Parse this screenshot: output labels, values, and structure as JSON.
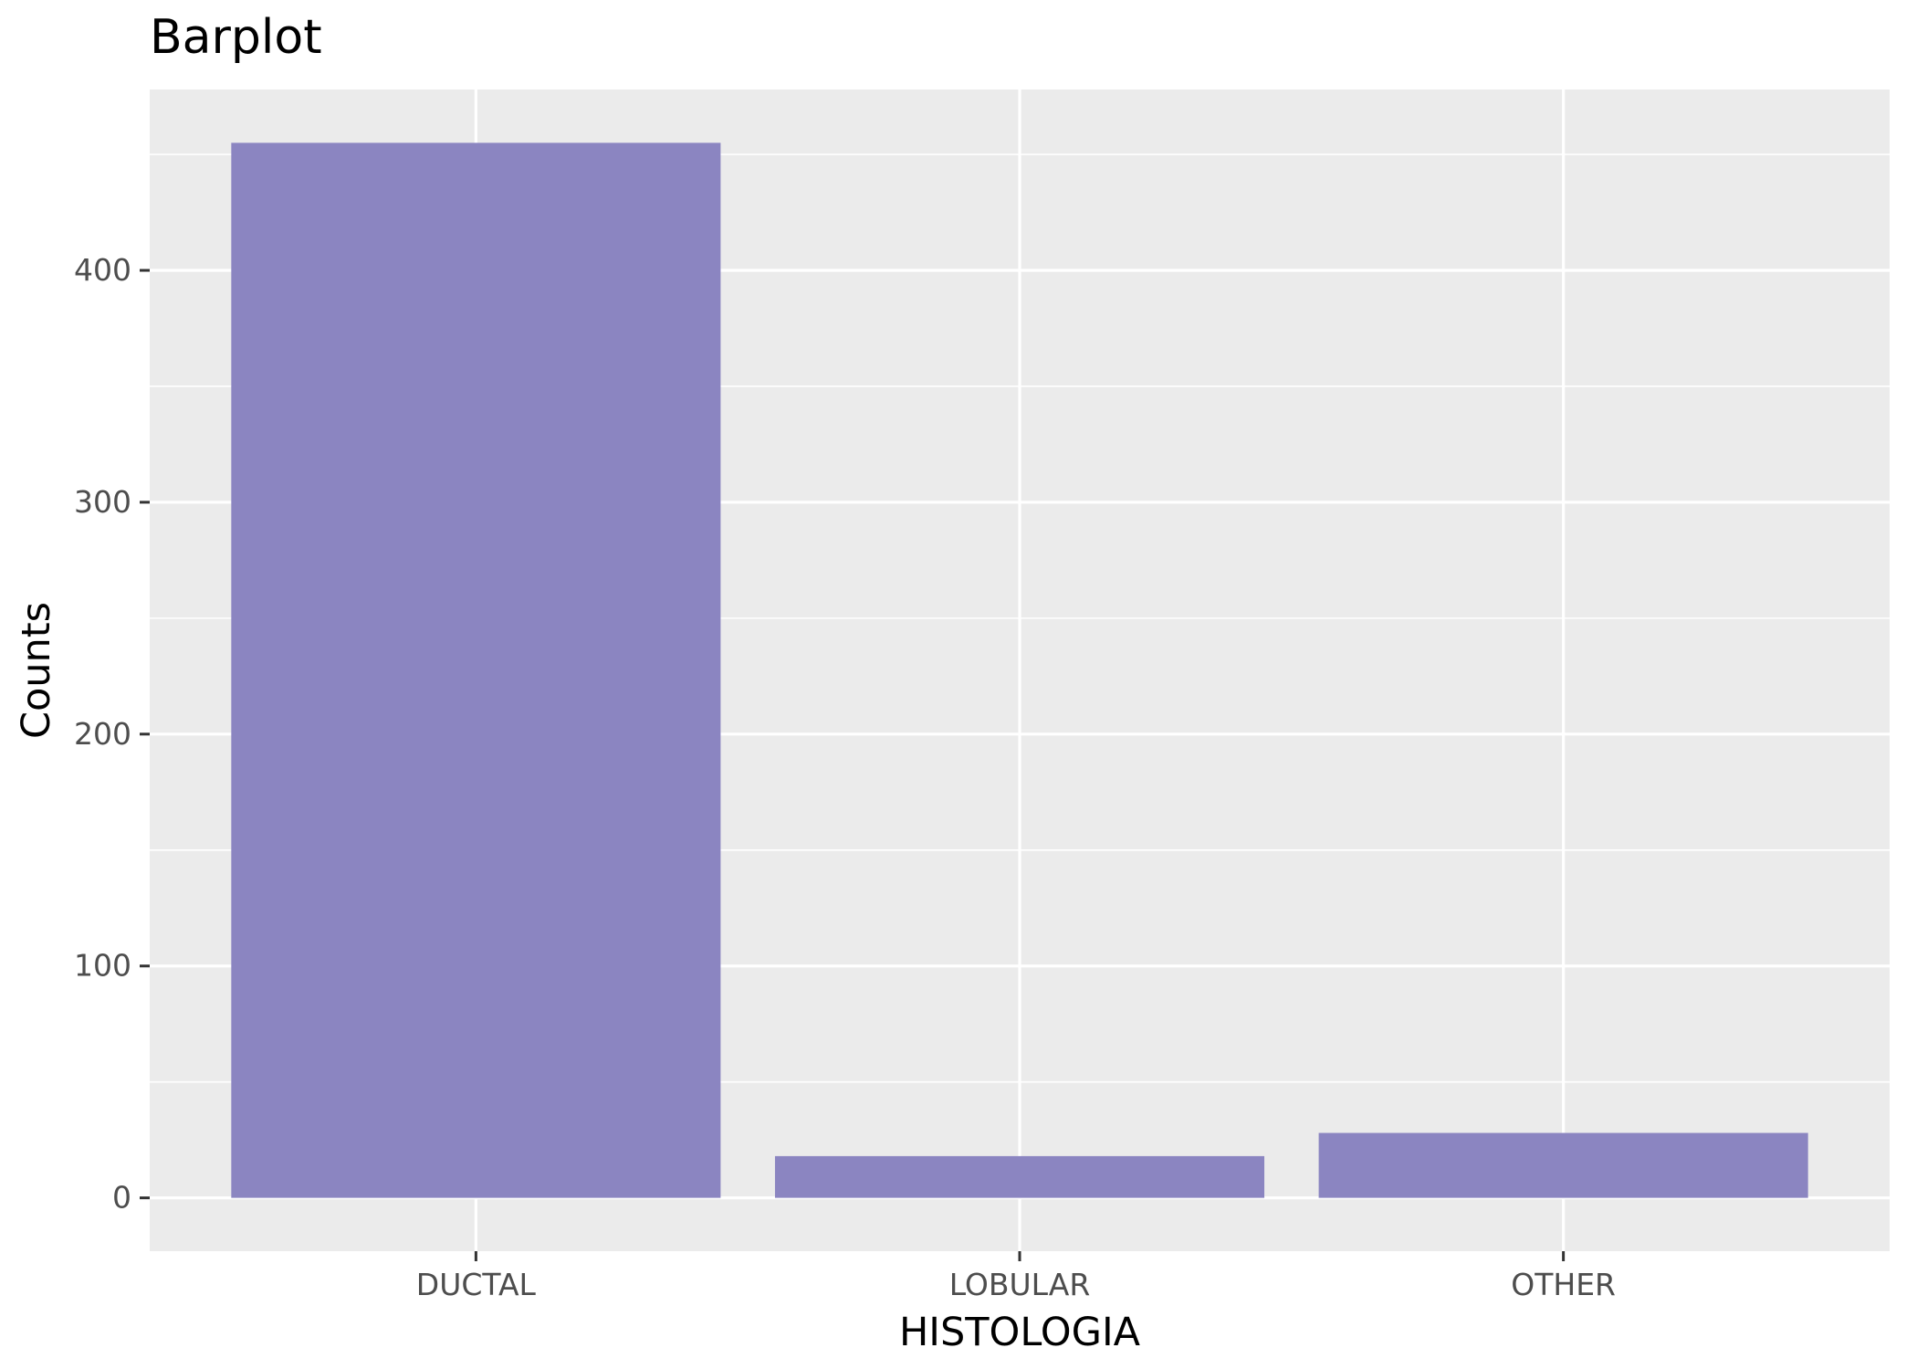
{
  "chart_data": {
    "type": "bar",
    "title": "Barplot",
    "xlabel": "HISTOLOGIA",
    "ylabel": "Counts",
    "categories": [
      "DUCTAL",
      "LOBULAR",
      "OTHER"
    ],
    "values": [
      455,
      18,
      28
    ],
    "ylim": [
      -23,
      478
    ],
    "yticks": [
      0,
      100,
      200,
      300,
      400
    ],
    "ytick_labels": [
      "0",
      "100",
      "200",
      "300",
      "400"
    ],
    "grid": true,
    "legend": "none",
    "colors": {
      "bar": "#8b85c1",
      "panel": "#ebebeb",
      "grid": "#ffffff",
      "tick": "#333333",
      "tick_label": "#4d4d4d"
    }
  }
}
